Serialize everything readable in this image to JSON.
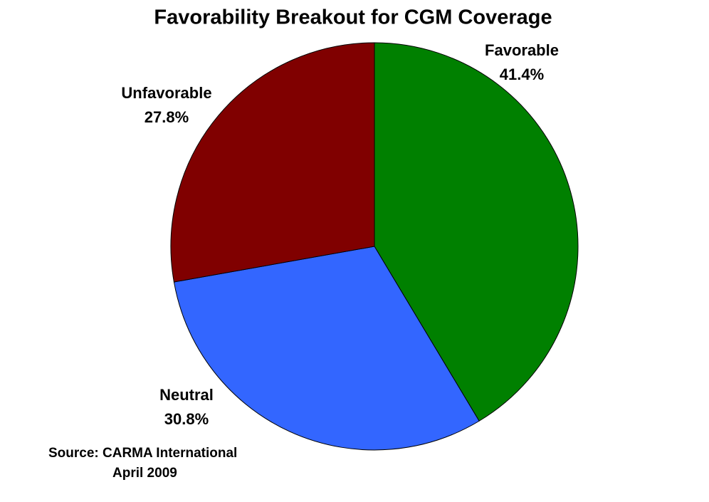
{
  "chart_data": {
    "type": "pie",
    "title": "Favorability Breakout for CGM Coverage",
    "categories": [
      "Favorable",
      "Neutral",
      "Unfavorable"
    ],
    "values": [
      41.4,
      30.8,
      27.8
    ],
    "value_labels": [
      "41.4%",
      "30.8%",
      "27.8%"
    ],
    "colors": [
      "#008000",
      "#3366ff",
      "#800000"
    ],
    "source": [
      "Source:  CARMA International",
      "April 2009"
    ]
  }
}
